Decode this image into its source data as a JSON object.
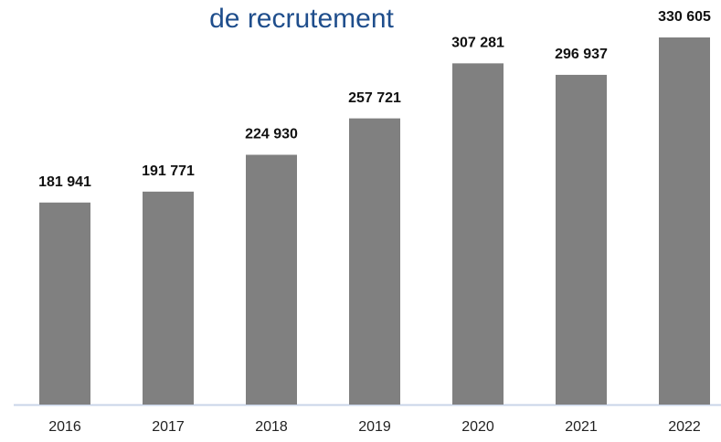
{
  "chart_data": {
    "type": "bar",
    "title": "de recrutement",
    "categories": [
      "2016",
      "2017",
      "2018",
      "2019",
      "2020",
      "2021",
      "2022"
    ],
    "values": [
      181941,
      191771,
      224930,
      257721,
      307281,
      296937,
      330605
    ],
    "value_labels": [
      "181 941",
      "191 771",
      "224 930",
      "257 721",
      "307 281",
      "296 937",
      "330 605"
    ],
    "color": "#808080"
  }
}
